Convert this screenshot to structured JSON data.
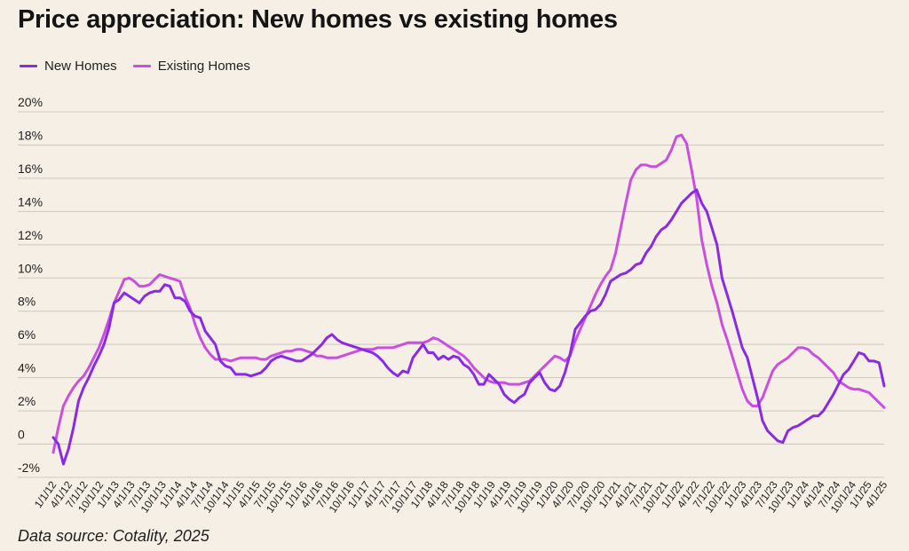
{
  "chart_data": {
    "type": "line",
    "title": "Price appreciation: New homes vs existing homes",
    "source": "Data source: Cotality, 2025",
    "xlabel": "",
    "ylabel": "",
    "ylim": [
      -2,
      20
    ],
    "yticks": [
      -2,
      0,
      2,
      4,
      6,
      8,
      10,
      12,
      14,
      16,
      18,
      20
    ],
    "ytick_labels": [
      "-2%",
      "0",
      "2%",
      "4%",
      "6%",
      "8%",
      "10%",
      "12%",
      "14%",
      "16%",
      "18%",
      "20%"
    ],
    "x_tick_labels": [
      "1/1/12",
      "4/1/12",
      "7/1/12",
      "10/1/12",
      "1/1/13",
      "4/1/13",
      "7/1/13",
      "10/1/13",
      "1/1/14",
      "4/1/14",
      "7/1/14",
      "10/1/14",
      "1/1/15",
      "4/1/15",
      "7/1/15",
      "10/1/15",
      "1/1/16",
      "4/1/16",
      "7/1/16",
      "10/1/16",
      "1/1/17",
      "4/1/17",
      "7/1/17",
      "10/1/17",
      "1/1/18",
      "4/1/18",
      "7/1/18",
      "10/1/18",
      "1/1/19",
      "4/1/19",
      "7/1/19",
      "10/1/19",
      "1/1/20",
      "4/1/20",
      "7/1/20",
      "10/1/20",
      "1/1/21",
      "4/1/21",
      "7/1/21",
      "10/1/21",
      "1/1/22",
      "4/1/22",
      "7/1/22",
      "10/1/22",
      "1/1/23",
      "4/1/23",
      "7/1/23",
      "10/1/23",
      "1/1/24",
      "4/1/24",
      "7/1/24",
      "10/1/24",
      "1/1/25",
      "4/1/25"
    ],
    "grid": true,
    "legend_position": "top-left",
    "series": [
      {
        "name": "New Homes",
        "color": "#8a2be2",
        "values": [
          0.4,
          0.0,
          -1.2,
          -0.3,
          1.0,
          2.6,
          3.4,
          4.0,
          4.7,
          5.3,
          6.0,
          7.0,
          8.5,
          8.7,
          9.1,
          8.9,
          8.7,
          8.5,
          8.9,
          9.1,
          9.2,
          9.2,
          9.6,
          9.5,
          8.8,
          8.8,
          8.6,
          8.0,
          7.7,
          7.6,
          6.8,
          6.4,
          6.0,
          5.0,
          4.7,
          4.6,
          4.2,
          4.2,
          4.2,
          4.1,
          4.2,
          4.3,
          4.6,
          5.0,
          5.2,
          5.3,
          5.2,
          5.1,
          5.0,
          5.0,
          5.2,
          5.4,
          5.7,
          6.0,
          6.4,
          6.6,
          6.3,
          6.1,
          6.0,
          5.9,
          5.8,
          5.7,
          5.6,
          5.5,
          5.3,
          5.0,
          4.6,
          4.3,
          4.1,
          4.4,
          4.3,
          5.2,
          5.6,
          6.0,
          5.5,
          5.5,
          5.1,
          5.3,
          5.1,
          5.3,
          5.2,
          4.8,
          4.6,
          4.2,
          3.6,
          3.6,
          4.2,
          3.9,
          3.6,
          3.0,
          2.7,
          2.5,
          2.8,
          3.0,
          3.7,
          4.0,
          4.3,
          3.7,
          3.3,
          3.2,
          3.5,
          4.3,
          5.4,
          6.9,
          7.3,
          7.7,
          8.0,
          8.1,
          8.4,
          9.0,
          9.8,
          10.0,
          10.2,
          10.3,
          10.5,
          10.8,
          10.9,
          11.5,
          11.9,
          12.5,
          12.9,
          13.1,
          13.5,
          14.0,
          14.5,
          14.8,
          15.1,
          15.3,
          14.5,
          14.0,
          13.0,
          12.0,
          10.0,
          9.0,
          8.0,
          6.9,
          5.8,
          5.2,
          4.0,
          2.8,
          1.4,
          0.8,
          0.5,
          0.2,
          0.1,
          0.8,
          1.0,
          1.1,
          1.3,
          1.5,
          1.7,
          1.7,
          2.0,
          2.5,
          3.0,
          3.6,
          4.2,
          4.5,
          5.0,
          5.5,
          5.4,
          5.0,
          5.0,
          4.9,
          3.5
        ]
      },
      {
        "name": "Existing Homes",
        "color": "#c94fe0",
        "values": [
          -0.5,
          1.0,
          2.3,
          2.9,
          3.4,
          3.8,
          4.1,
          4.6,
          5.2,
          5.8,
          6.6,
          7.5,
          8.5,
          9.2,
          9.9,
          10.0,
          9.8,
          9.5,
          9.5,
          9.6,
          9.9,
          10.2,
          10.1,
          10.0,
          9.9,
          9.8,
          8.9,
          8.2,
          7.2,
          6.4,
          5.8,
          5.4,
          5.1,
          5.1,
          5.1,
          5.0,
          5.1,
          5.2,
          5.2,
          5.2,
          5.2,
          5.1,
          5.1,
          5.3,
          5.4,
          5.5,
          5.6,
          5.6,
          5.7,
          5.7,
          5.6,
          5.5,
          5.3,
          5.3,
          5.2,
          5.2,
          5.2,
          5.3,
          5.4,
          5.5,
          5.6,
          5.7,
          5.7,
          5.7,
          5.8,
          5.8,
          5.8,
          5.8,
          5.9,
          6.0,
          6.1,
          6.1,
          6.1,
          6.1,
          6.2,
          6.4,
          6.3,
          6.1,
          5.9,
          5.7,
          5.5,
          5.3,
          5.0,
          4.6,
          4.3,
          4.0,
          3.8,
          3.7,
          3.7,
          3.7,
          3.6,
          3.6,
          3.6,
          3.7,
          3.8,
          4.1,
          4.4,
          4.7,
          5.0,
          5.3,
          5.2,
          5.0,
          5.3,
          6.2,
          6.9,
          7.6,
          8.3,
          9.0,
          9.6,
          10.1,
          10.5,
          11.5,
          13.0,
          14.5,
          15.9,
          16.5,
          16.8,
          16.8,
          16.7,
          16.7,
          16.9,
          17.1,
          17.7,
          18.5,
          18.6,
          18.1,
          16.5,
          14.8,
          12.3,
          10.8,
          9.5,
          8.5,
          7.2,
          6.3,
          5.3,
          4.3,
          3.3,
          2.6,
          2.3,
          2.3,
          2.8,
          3.6,
          4.4,
          4.8,
          5.0,
          5.2,
          5.5,
          5.8,
          5.8,
          5.7,
          5.4,
          5.2,
          4.9,
          4.6,
          4.3,
          3.8,
          3.6,
          3.4,
          3.3,
          3.3,
          3.2,
          3.1,
          2.8,
          2.5,
          2.2
        ]
      }
    ]
  }
}
